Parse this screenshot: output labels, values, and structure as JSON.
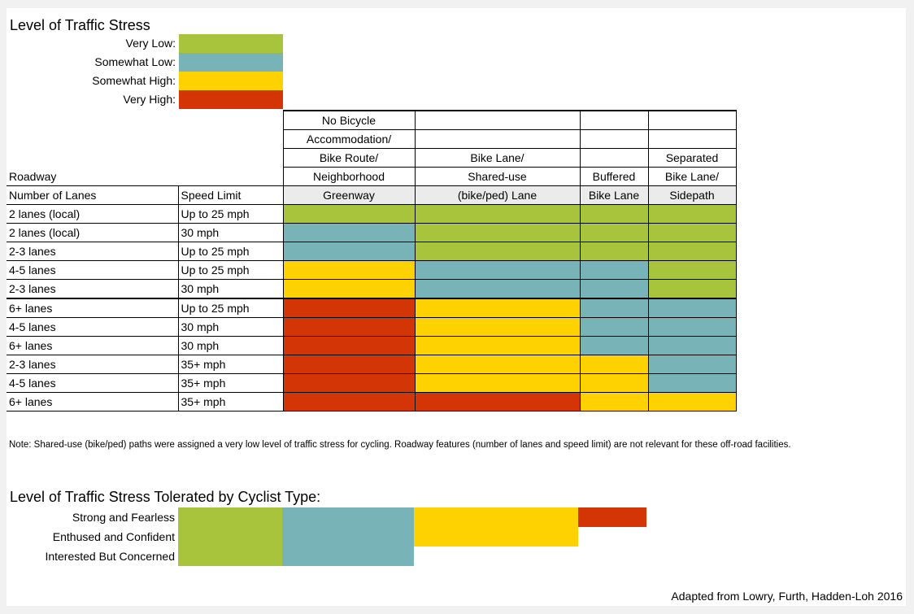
{
  "colors": {
    "very_low": "#a8c43c",
    "somewhat_low": "#78b3b8",
    "somewhat_high": "#fdd200",
    "very_high": "#d43507",
    "header_gray": "#ebebeb"
  },
  "legend": {
    "title": "Level of Traffic Stress",
    "items": [
      {
        "label": "Very Low:",
        "level": "very_low"
      },
      {
        "label": "Somewhat Low:",
        "level": "somewhat_low"
      },
      {
        "label": "Somewhat High:",
        "level": "somewhat_high"
      },
      {
        "label": "Very High:",
        "level": "very_high"
      }
    ]
  },
  "table": {
    "roadway_label": "Roadway",
    "col_lanes_label": "Number of Lanes",
    "col_speed_label": "Speed Limit",
    "facilities": [
      {
        "lines": [
          "No Bicycle",
          "Accommodation/",
          "Bike Route/",
          "Neighborhood",
          "Greenway"
        ]
      },
      {
        "lines": [
          "",
          "",
          "Bike Lane/",
          "Shared-use",
          "(bike/ped) Lane"
        ]
      },
      {
        "lines": [
          "",
          "",
          "",
          "Buffered",
          "Bike Lane"
        ]
      },
      {
        "lines": [
          "",
          "",
          "Separated",
          "Bike Lane/",
          "Sidepath"
        ]
      }
    ],
    "rows": [
      {
        "lanes": "2 lanes (local)",
        "speed": "Up to 25 mph",
        "levels": [
          "very_low",
          "very_low",
          "very_low",
          "very_low"
        ]
      },
      {
        "lanes": "2 lanes (local)",
        "speed": "30 mph",
        "levels": [
          "somewhat_low",
          "very_low",
          "very_low",
          "very_low"
        ]
      },
      {
        "lanes": "2-3 lanes",
        "speed": "Up to 25 mph",
        "levels": [
          "somewhat_low",
          "very_low",
          "very_low",
          "very_low"
        ]
      },
      {
        "lanes": "4-5 lanes",
        "speed": "Up to 25 mph",
        "levels": [
          "somewhat_high",
          "somewhat_low",
          "somewhat_low",
          "very_low"
        ]
      },
      {
        "lanes": "2-3 lanes",
        "speed": "30 mph",
        "levels": [
          "somewhat_high",
          "somewhat_low",
          "somewhat_low",
          "very_low"
        ]
      },
      {
        "lanes": "6+ lanes",
        "speed": "Up to 25 mph",
        "levels": [
          "very_high",
          "somewhat_high",
          "somewhat_low",
          "somewhat_low"
        ]
      },
      {
        "lanes": "4-5 lanes",
        "speed": "30 mph",
        "levels": [
          "very_high",
          "somewhat_high",
          "somewhat_low",
          "somewhat_low"
        ]
      },
      {
        "lanes": "6+ lanes",
        "speed": "30 mph",
        "levels": [
          "very_high",
          "somewhat_high",
          "somewhat_low",
          "somewhat_low"
        ]
      },
      {
        "lanes": "2-3 lanes",
        "speed": "35+ mph",
        "levels": [
          "very_high",
          "somewhat_high",
          "somewhat_high",
          "somewhat_low"
        ]
      },
      {
        "lanes": "4-5 lanes",
        "speed": "35+ mph",
        "levels": [
          "very_high",
          "somewhat_high",
          "somewhat_high",
          "somewhat_low"
        ]
      },
      {
        "lanes": "6+ lanes",
        "speed": "35+ mph",
        "levels": [
          "very_high",
          "very_high",
          "somewhat_high",
          "somewhat_high"
        ]
      }
    ]
  },
  "note": "Note: Shared-use (bike/ped) paths were assigned a very low level of traffic stress for cycling.  Roadway features (number of lanes and speed limit) are not relevant for these off-road facilities.",
  "tolerance": {
    "title": "Level of Traffic Stress Tolerated by Cyclist Type:",
    "types": [
      {
        "label": "Strong and Fearless",
        "levels": [
          "very_low",
          "somewhat_low",
          "somewhat_high",
          "very_high"
        ]
      },
      {
        "label": "Enthused and Confident",
        "levels": [
          "very_low",
          "somewhat_low",
          "somewhat_high"
        ]
      },
      {
        "label": "Interested But Concerned",
        "levels": [
          "very_low",
          "somewhat_low"
        ]
      }
    ]
  },
  "credit": "Adapted from Lowry, Furth, Hadden-Loh 2016"
}
